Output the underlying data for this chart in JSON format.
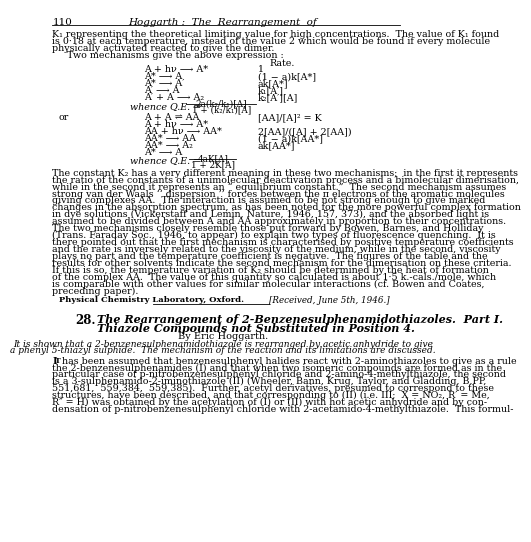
{
  "bg_color": "#ffffff",
  "page_number": "110",
  "header_title": "Hoggarth :  The  Rearrangement  of",
  "body_top": [
    "K₁ representing the theoretical limiting value for high concentrations.  The value of K₁ found",
    "is 0·18 at each temperature, instead of the value 2 which would be found if every molecule",
    "physically activated reacted to give the dimer.",
    "     Two mechanisms give the above expression :"
  ],
  "mech1_left": [
    "A + hν ⟶ A*",
    "A* ⟶ A",
    "A* ⟶ A′",
    "A′ ⟶ A",
    "A′ + A ⟶ A₂"
  ],
  "mech1_right": [
    "1",
    "(1 − a)k[A*]",
    "ak[A*]",
    "k₁[A′]",
    "k₂[A′][A]"
  ],
  "whence1_num": "2a(k₂/k₁)[A]",
  "whence1_den": "1 + (k₂/k₁)[A]",
  "mech2_left": [
    "A + A ⇌ AA",
    "A + hν ⟶ A*",
    "AA + hν ⟶ AA*",
    "AA* ⟶ AA",
    "AA* ⟶ A₂",
    "A* ⟶ A"
  ],
  "mech2_right": [
    "[AA]/[A]² = K",
    "",
    "2[AA]/([A] + 2[AA])",
    "(1 − a)k[AA*]",
    "ak[AA*]",
    ""
  ],
  "whence2_num": "4aK[A]",
  "whence2_den": "1 + 2K[A]",
  "body2": [
    "The constant K₂ has a very different meaning in these two mechanisms;  in the first it represents",
    "the ratio of the constants of a unimolecular deactivation process and a bimolecular dimerisation,",
    "while in the second it represents an “ equilibrium constant.”  The second mechanism assumes",
    "strong van der Waals ‘‘ dispersion ’’ forces between the π electrons of the aromatic molecules",
    "giving complexes AA.  The interaction is assumed to be not strong enough to give marked",
    "changes in the absorption spectrum, as has been noted for the more powerful complex formation",
    "in dye solutions (Vickerstaff and Lemin, Nature, 1946, 157, 373), and the absorbed light is",
    "assumed to be divided between A and AA approximately in proportion to their concentrations.",
    "The two mechanisms closely resemble those put forward by Bowen, Barnes, and Holliday",
    "(Trans. Faraday Soc., 1946, to appear) to explain two types of fluorescence quenching.  It is",
    "there pointed out that the first mechanism is characterised by positive temperature coefficients",
    "and the rate is inversely related to the viscosity of the medium, while in the second, viscosity",
    "plays no part and the temperature coefficient is negative.  The figures of the table and the",
    "results for other solvents indicate the second mechanism for the dimerisation on these criteria.",
    "If this is so, the temperature variation of K₂ should be determined by the heat of formation",
    "of the complex AA.  The value of this quantity so calculated is about 1·5 k.-cals./mole, which",
    "is comparable with other values for similar molecular interactions (cf. Bowen and Coates,",
    "preceding paper)."
  ],
  "affiliation": "Physical Chemistry Laboratory, Oxford.",
  "received": "[Received, June 5th, 1946.]",
  "section_num": "28.",
  "section_title1": "The Rearrangement of 2-Benzenesulphenamidothiazoles.  Part I.",
  "section_title2": "Thiazole Compounds not Substituted in Position 4.",
  "author": "By Eric Hoggarth.",
  "abstract": [
    "It is shown that a 2-benzenesulphenamidothiazole is rearranged by acetic anhydride to give",
    "a phenyl 5-thiazyl sulphide.  The mechanism of the reaction and its limitations are discussed."
  ],
  "intro": [
    "It has been assumed that benzenesulphenyl halides react with 2-aminothiazoles to give as a rule",
    "the 2-benzenesulphenamides (I) and that when two isomeric compounds are formed as in the",
    "particular case of p-nitrobenzenesulphenyl chloride and 2-amino-4-methylthiazole, the second",
    "is a 3-sulphenamido-2-iminothiazole (II) (Wheeler, Bann, Krug, Taylor, and Gladding, B,PP,",
    "551,681,  559,384,  559,385).  Further, acetyl derivatives, presumed to correspond to these",
    "structures, have been described, and that corresponding to (II) (i.e. III;  X = NO₂, R′ = Me,",
    "R″ = H) was obtained by the acetylation of (I) or (II) with hot acetic anhydride and by con-",
    "densation of p-nitrobenzenesulphenyl chloride with 2-acetamido-4-methylthiazole.  This formul-"
  ]
}
